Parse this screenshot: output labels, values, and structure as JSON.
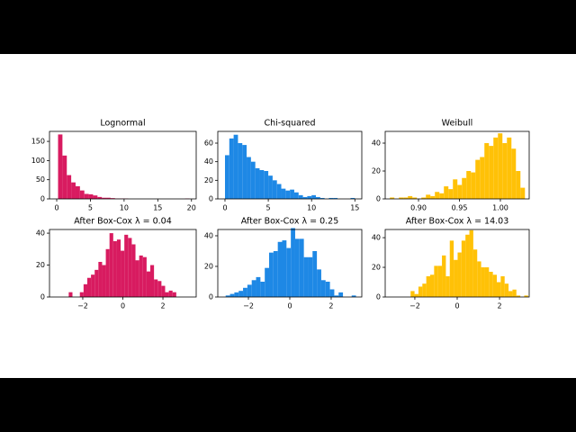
{
  "chart_data": [
    {
      "type": "histogram",
      "title": "Lognormal",
      "color": "#d81b60",
      "bins": [
        0.2,
        0.85,
        1.5,
        2.15,
        2.8,
        3.45,
        4.1,
        4.75,
        5.4,
        6.05,
        6.7,
        7.35,
        8,
        8.65,
        9.3,
        9.95,
        10.6,
        11.25,
        11.9,
        12.55,
        13.2,
        13.85,
        14.5,
        15.15,
        15.8,
        16.45,
        17.1,
        17.75,
        18.4,
        19.05,
        19.7
      ],
      "values": [
        168,
        113,
        62,
        43,
        33,
        22,
        13,
        12,
        9,
        5,
        3,
        3,
        2,
        1,
        1,
        1,
        0,
        0,
        0,
        0,
        0,
        0,
        0,
        0,
        0,
        0,
        0,
        0,
        0,
        1
      ],
      "xlim": [
        -1.07,
        20.7
      ],
      "xticks": [
        0,
        5,
        10,
        15,
        20
      ],
      "ylim": [
        0,
        176
      ],
      "yticks": [
        0,
        50,
        100,
        150
      ]
    },
    {
      "type": "histogram",
      "title": "Chi-squared",
      "color": "#1e88e5",
      "bins": [
        0,
        0.5,
        1,
        1.5,
        2,
        2.5,
        3,
        3.5,
        4,
        4.5,
        5,
        5.5,
        6,
        6.5,
        7,
        7.5,
        8,
        8.5,
        9,
        9.5,
        10,
        10.5,
        11,
        11.5,
        12,
        12.5,
        13,
        13.5,
        14,
        14.5,
        15
      ],
      "values": [
        47,
        65,
        69,
        60,
        58,
        45,
        40,
        33,
        31,
        30,
        25,
        20,
        16,
        11,
        9,
        10,
        7,
        4,
        2,
        3,
        4,
        2,
        1,
        0,
        1,
        1,
        0,
        0,
        0,
        1
      ],
      "xlim": [
        -0.83,
        15.8
      ],
      "xticks": [
        0,
        5,
        10,
        15
      ],
      "ylim": [
        0,
        72.6
      ],
      "yticks": [
        0,
        20,
        40,
        60
      ]
    },
    {
      "type": "histogram",
      "title": "Weibull",
      "color": "#ffc107",
      "bins": [
        0.865,
        0.8705,
        0.876,
        0.8815,
        0.887,
        0.8925,
        0.898,
        0.9035,
        0.909,
        0.9145,
        0.92,
        0.9255,
        0.931,
        0.9365,
        0.942,
        0.9475,
        0.953,
        0.9585,
        0.964,
        0.9695,
        0.975,
        0.9805,
        0.986,
        0.9915,
        0.997,
        1.0025,
        1.008,
        1.0135,
        1.019,
        1.0245,
        1.03
      ],
      "values": [
        1,
        0,
        1,
        1,
        2,
        1,
        0,
        1,
        3,
        2,
        5,
        4,
        9,
        7,
        14,
        10,
        15,
        20,
        19,
        28,
        30,
        40,
        38,
        44,
        47,
        40,
        44,
        36,
        20,
        8
      ],
      "xlim": [
        0.8593,
        1.0352
      ],
      "xticks": [
        {
          "value": 0.9,
          "label": "0.90"
        },
        0.95,
        {
          "value": 1,
          "label": "1.00"
        }
      ],
      "ylim": [
        0,
        48.4
      ],
      "yticks": [
        0,
        20,
        40
      ]
    },
    {
      "type": "histogram",
      "title": "After Box-Cox λ = 0.04",
      "color": "#d81b60",
      "bins": [
        -2.7,
        -2.515,
        -2.33,
        -2.145,
        -1.96,
        -1.775,
        -1.59,
        -1.405,
        -1.22,
        -1.035,
        -0.85,
        -0.665,
        -0.48,
        -0.295,
        -0.11,
        0.075,
        0.26,
        0.445,
        0.63,
        0.815,
        1,
        1.185,
        1.37,
        1.555,
        1.74,
        1.925,
        2.11,
        2.295,
        2.48,
        2.665,
        2.85
      ],
      "values": [
        3,
        0,
        0,
        3,
        8,
        12,
        14,
        17,
        22,
        20,
        30,
        40,
        35,
        36,
        29,
        39,
        37,
        33,
        23,
        26,
        25,
        16,
        20,
        11,
        10,
        7,
        3,
        4,
        3,
        0
      ],
      "xlim": [
        -3.66,
        3.66
      ],
      "xticks": [
        {
          "value": -2,
          "label": "−2"
        },
        0,
        2
      ],
      "ylim": [
        0,
        42.3
      ],
      "yticks": [
        0,
        20,
        40
      ]
    },
    {
      "type": "histogram",
      "title": "After Box-Cox λ = 0.25",
      "color": "#1e88e5",
      "bins": [
        -3.1,
        -2.89,
        -2.68,
        -2.47,
        -2.26,
        -2.05,
        -1.84,
        -1.63,
        -1.42,
        -1.21,
        -1,
        -0.79,
        -0.58,
        -0.37,
        -0.16,
        0.05,
        0.26,
        0.47,
        0.68,
        0.89,
        1.1,
        1.31,
        1.52,
        1.73,
        1.94,
        2.15,
        2.36,
        2.57,
        2.78,
        2.99,
        3.2
      ],
      "values": [
        1,
        2,
        3,
        4,
        6,
        8,
        11,
        13,
        10,
        19,
        29,
        30,
        36,
        37,
        32,
        45,
        38,
        38,
        26,
        26,
        30,
        18,
        11,
        10,
        5,
        1,
        3,
        0,
        0,
        1
      ],
      "xlim": [
        -3.48,
        3.48
      ],
      "xticks": [
        {
          "value": -2,
          "label": "−2"
        },
        0,
        2
      ],
      "ylim": [
        0,
        44.1
      ],
      "yticks": [
        0,
        20,
        40
      ]
    },
    {
      "type": "histogram",
      "title": "After Box-Cox λ = 14.03",
      "color": "#ffc107",
      "bins": [
        -2.2,
        -2.015,
        -1.83,
        -1.645,
        -1.46,
        -1.275,
        -1.09,
        -0.905,
        -0.72,
        -0.535,
        -0.35,
        -0.165,
        0.02,
        0.205,
        0.39,
        0.575,
        0.76,
        0.945,
        1.13,
        1.315,
        1.5,
        1.685,
        1.87,
        2.055,
        2.24,
        2.425,
        2.61,
        2.795,
        2.98,
        3.165,
        3.35
      ],
      "values": [
        4,
        2,
        7,
        9,
        14,
        15,
        21,
        21,
        28,
        14,
        38,
        25,
        30,
        38,
        42,
        45,
        32,
        24,
        20,
        20,
        17,
        15,
        10,
        14,
        9,
        4,
        5,
        1,
        0,
        1
      ],
      "xlim": [
        -3.4,
        3.4
      ],
      "xticks": [
        {
          "value": -2,
          "label": "−2"
        },
        0,
        2
      ],
      "ylim": [
        0,
        45.5
      ],
      "yticks": [
        0,
        20,
        40
      ]
    }
  ]
}
